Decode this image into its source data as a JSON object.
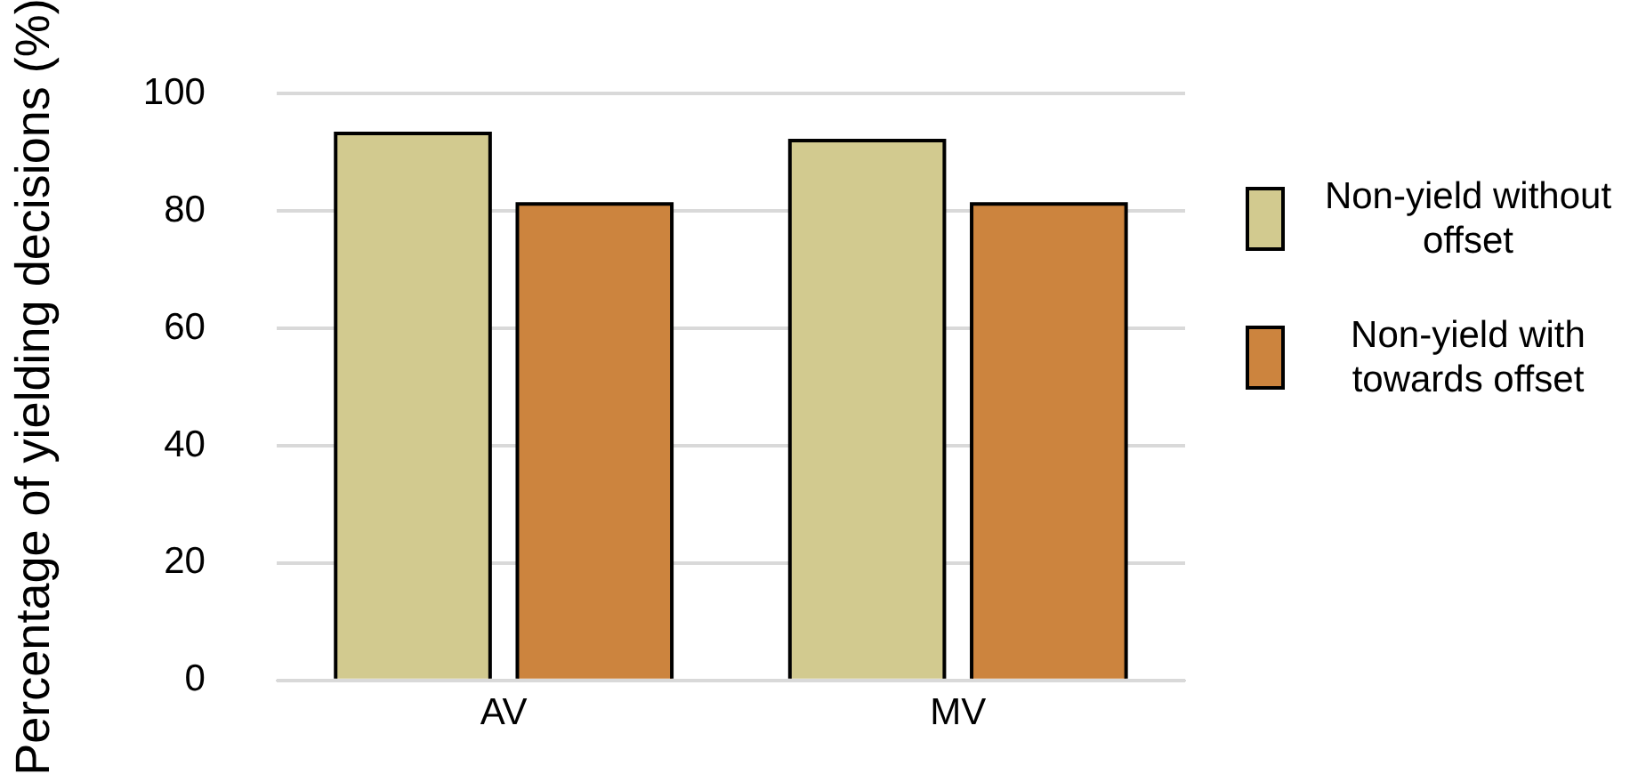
{
  "chart_data": {
    "type": "bar",
    "ylabel": "Percentage of yielding decisions (%)",
    "categories": [
      "AV",
      "MV"
    ],
    "series": [
      {
        "name": "Non-yield without offset",
        "color": "#d2ca8f",
        "values": [
          93.2,
          92.0
        ]
      },
      {
        "name": "Non-yield with towards offset",
        "color": "#cc843e",
        "values": [
          81.2,
          81.2
        ]
      }
    ],
    "ylim": [
      0,
      100
    ],
    "yticks": [
      0,
      20,
      40,
      60,
      80,
      100
    ],
    "grid": "y",
    "legend": "right"
  }
}
